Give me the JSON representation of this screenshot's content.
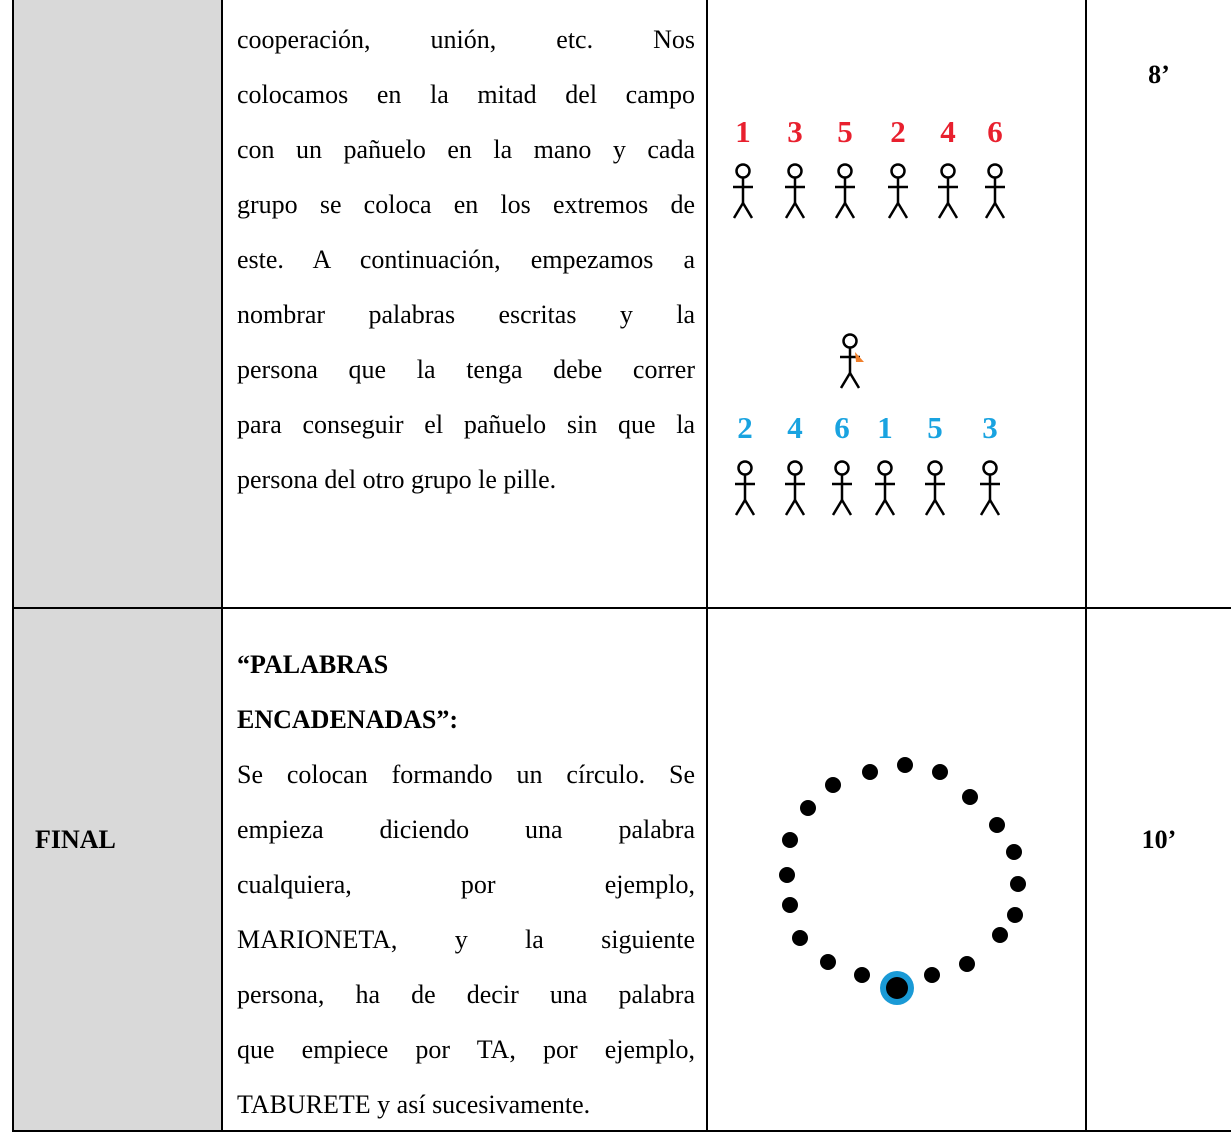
{
  "rows": [
    {
      "description": {
        "lines": [
          "cooperación, unión, etc. Nos",
          "colocamos en la mitad del campo",
          "con un pañuelo en la mano y cada",
          "grupo se coloca en los extremos de",
          "este. A continuación, empezamos a",
          "nombrar palabras escritas y la",
          "persona que la tenga debe correr",
          "para conseguir el pañuelo sin que la",
          "persona del otro grupo le pille."
        ]
      },
      "diagram": {
        "top_numbers": [
          1,
          3,
          5,
          2,
          4,
          6
        ],
        "bottom_numbers": [
          2,
          4,
          6,
          1,
          5,
          3
        ]
      },
      "time": "8’"
    },
    {
      "phase": "FINAL",
      "description": {
        "heading": [
          "“PALABRAS",
          "ENCADENADAS”:"
        ],
        "lines": [
          "Se colocan formando un círculo. Se",
          "empieza diciendo una palabra",
          "cualquiera, por ejemplo,",
          "MARIONETA, y la siguiente",
          "persona, ha de decir una palabra",
          "que empiece por TA, por ejemplo,",
          "TABURETE y así sucesivamente."
        ]
      },
      "time": "10’"
    }
  ]
}
